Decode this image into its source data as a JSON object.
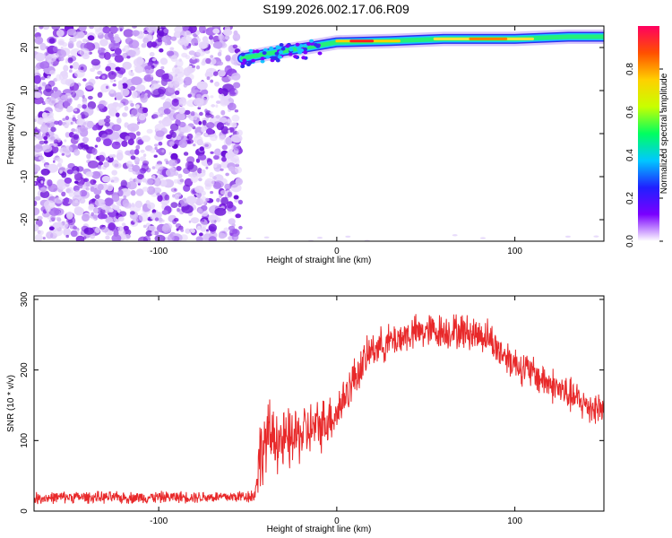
{
  "title": "S199.2026.002.17.06.R09",
  "colors": {
    "snr_line": "#e8292a",
    "noise_purple": "#7b1fe0",
    "axis": "#000000",
    "background": "#ffffff"
  },
  "colormap": [
    "#ffffff",
    "#7a00ff",
    "#2020ff",
    "#00c8ff",
    "#00ff60",
    "#c8ff00",
    "#ffd000",
    "#ff5000",
    "#ff0060"
  ],
  "chart_data": [
    {
      "type": "heatmap",
      "xlabel": "Height of straight line (km)",
      "ylabel": "Frequency (Hz)",
      "xlim": [
        -170,
        150
      ],
      "ylim": [
        -25,
        25
      ],
      "xticks": [
        -100,
        0,
        100
      ],
      "xtick_labels": [
        "-100",
        "0",
        "100"
      ],
      "yticks": [
        -20,
        -10,
        0,
        10,
        20
      ],
      "ytick_labels": [
        "-20",
        "-10",
        "0",
        "10",
        "20"
      ],
      "noise_region_x": [
        -170,
        -54
      ],
      "signal_track": [
        {
          "x": -53,
          "y": 17.5
        },
        {
          "x": -40,
          "y": 18.5
        },
        {
          "x": -25,
          "y": 19.5
        },
        {
          "x": -10,
          "y": 20.5
        },
        {
          "x": 0,
          "y": 21.2
        },
        {
          "x": 30,
          "y": 21.5
        },
        {
          "x": 60,
          "y": 22
        },
        {
          "x": 100,
          "y": 22
        },
        {
          "x": 130,
          "y": 22.5
        },
        {
          "x": 150,
          "y": 22.5
        }
      ],
      "colorbar": {
        "label": "Normalized spectral amplitude",
        "range": [
          0,
          1
        ],
        "ticks": [
          0.0,
          0.2,
          0.4,
          0.6,
          0.8
        ],
        "tick_labels": [
          "0.0",
          "0.2",
          "0.4",
          "0.6",
          "0.8"
        ]
      }
    },
    {
      "type": "line",
      "xlabel": "Height of straight line (km)",
      "ylabel": "SNR (10 * v/v)",
      "xlim": [
        -170,
        150
      ],
      "ylim": [
        0,
        305
      ],
      "xticks": [
        -100,
        0,
        100
      ],
      "xtick_labels": [
        "-100",
        "0",
        "100"
      ],
      "yticks": [
        0,
        100,
        200,
        300
      ],
      "ytick_labels": [
        "0",
        "100",
        "200",
        "300"
      ],
      "series": [
        {
          "name": "SNR",
          "x": [
            -170,
            -150,
            -120,
            -90,
            -60,
            -46,
            -44,
            -40,
            -35,
            -30,
            -20,
            -10,
            0,
            10,
            20,
            30,
            40,
            50,
            60,
            70,
            80,
            85,
            90,
            100,
            110,
            120,
            130,
            140,
            150
          ],
          "values": [
            18,
            20,
            19,
            20,
            20,
            22,
            70,
            100,
            110,
            95,
            110,
            120,
            140,
            190,
            230,
            240,
            250,
            255,
            255,
            255,
            250,
            248,
            230,
            210,
            195,
            180,
            165,
            150,
            145
          ],
          "spread": [
            10,
            10,
            10,
            10,
            10,
            12,
            60,
            60,
            60,
            55,
            50,
            45,
            40,
            35,
            30,
            30,
            30,
            30,
            30,
            30,
            30,
            30,
            30,
            30,
            30,
            30,
            30,
            30,
            30
          ]
        }
      ]
    }
  ]
}
